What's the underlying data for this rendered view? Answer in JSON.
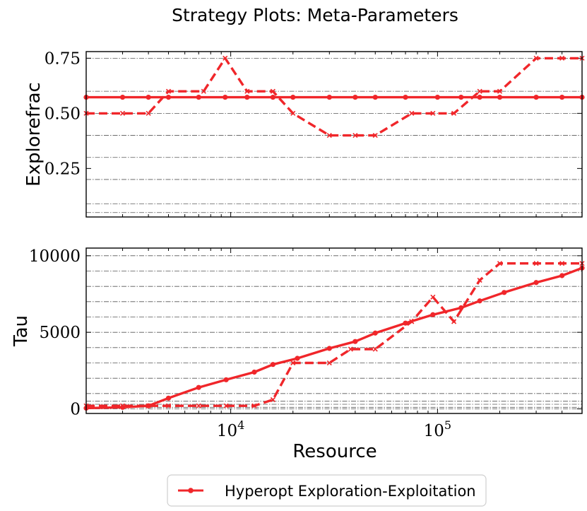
{
  "title": "Strategy Plots: Meta-Parameters",
  "xlabel": "Resource",
  "x_ticks": [
    {
      "base": "10",
      "exp": "4",
      "value": 10000
    },
    {
      "base": "10",
      "exp": "5",
      "value": 100000
    }
  ],
  "legend": {
    "label": "Hyperopt Exploration-Exploitation",
    "placement": "bottom-center"
  },
  "colors": {
    "series": "#f0262a",
    "axis": "#000000",
    "grid": "#555555"
  },
  "chart_data": [
    {
      "type": "line",
      "ylabel": "Explorefrac",
      "xscale": "log",
      "xlim": [
        2000,
        500000
      ],
      "ylim": [
        0.03,
        0.78
      ],
      "y_ticks": [
        {
          "label": "0.25",
          "value": 0.25
        },
        {
          "label": "0.50",
          "value": 0.5
        },
        {
          "label": "0.75",
          "value": 0.75
        }
      ],
      "grid_y": [
        0.05,
        0.09,
        0.2,
        0.3,
        0.4,
        0.5,
        0.6,
        0.75
      ],
      "grid": true,
      "series": [
        {
          "name": "Hyperopt Exploration-Exploitation",
          "style": "solid",
          "marker": "dot",
          "x": [
            2000,
            3000,
            4000,
            5000,
            7000,
            9400,
            12000,
            16000,
            20000,
            30000,
            40000,
            50000,
            70000,
            100000,
            130000,
            160000,
            200000,
            300000,
            400000,
            500000
          ],
          "y": [
            0.573,
            0.573,
            0.573,
            0.573,
            0.573,
            0.573,
            0.573,
            0.573,
            0.573,
            0.573,
            0.573,
            0.573,
            0.573,
            0.573,
            0.573,
            0.573,
            0.573,
            0.573,
            0.573,
            0.573
          ]
        },
        {
          "style": "dashed",
          "marker": "x",
          "x": [
            2000,
            3000,
            4000,
            5000,
            7400,
            9400,
            12000,
            16000,
            20000,
            30000,
            40000,
            50000,
            75000,
            95000,
            120000,
            160000,
            200000,
            300000,
            400000,
            500000
          ],
          "y": [
            0.5,
            0.5,
            0.5,
            0.6,
            0.6,
            0.75,
            0.6,
            0.6,
            0.5,
            0.4,
            0.4,
            0.4,
            0.5,
            0.5,
            0.5,
            0.6,
            0.6,
            0.75,
            0.75,
            0.75
          ]
        }
      ]
    },
    {
      "type": "line",
      "ylabel": "Tau",
      "xscale": "log",
      "xlim": [
        2000,
        500000
      ],
      "ylim": [
        -300,
        10500
      ],
      "y_ticks": [
        {
          "label": "0",
          "value": 0
        },
        {
          "label": "5000",
          "value": 5000
        },
        {
          "label": "10000",
          "value": 10000
        }
      ],
      "grid_y": [
        0,
        100,
        300,
        500,
        1000,
        2000,
        3000,
        4000,
        5000,
        6000,
        7000,
        8000,
        9000,
        10000
      ],
      "grid": true,
      "series": [
        {
          "name": "Hyperopt Exploration-Exploitation",
          "style": "solid",
          "marker": "dot",
          "x": [
            2000,
            3000,
            4000,
            5000,
            7000,
            9500,
            13000,
            16000,
            21000,
            30000,
            40000,
            50000,
            70000,
            95000,
            130000,
            160000,
            210000,
            300000,
            400000,
            500000
          ],
          "y": [
            50,
            100,
            200,
            700,
            1400,
            1900,
            2400,
            2900,
            3300,
            3950,
            4400,
            4950,
            5600,
            6150,
            6600,
            7050,
            7600,
            8250,
            8700,
            9200
          ]
        },
        {
          "style": "dashed",
          "marker": "x",
          "x": [
            2000,
            3000,
            4000,
            5000,
            7000,
            9500,
            13000,
            16000,
            20000,
            30000,
            38000,
            50000,
            75000,
            95000,
            120000,
            160000,
            200000,
            300000,
            400000,
            500000
          ],
          "y": [
            200,
            200,
            200,
            200,
            200,
            200,
            200,
            600,
            3000,
            3000,
            3900,
            3900,
            5700,
            7300,
            5700,
            8400,
            9500,
            9500,
            9500,
            9500
          ]
        }
      ]
    }
  ]
}
